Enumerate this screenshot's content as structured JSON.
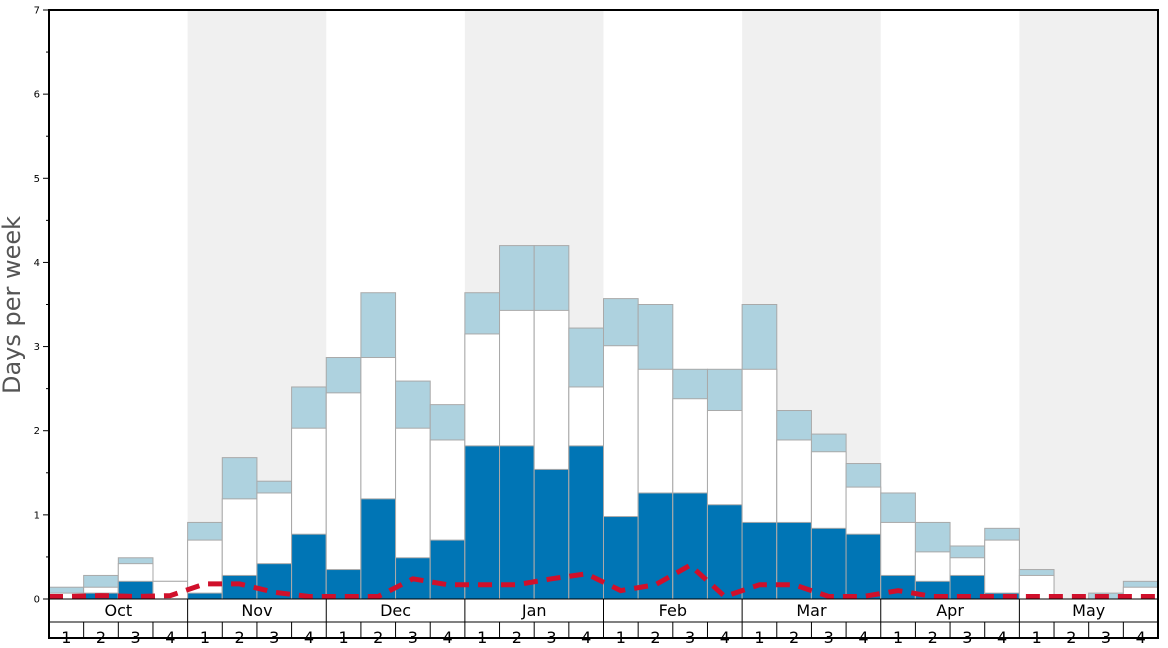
{
  "chart_data": {
    "type": "bar",
    "ylabel": "Days per week",
    "ylim": [
      0,
      7
    ],
    "yticks": [
      0,
      1,
      2,
      3,
      4,
      5,
      6,
      7
    ],
    "months": [
      "Oct",
      "Nov",
      "Dec",
      "Jan",
      "Feb",
      "Mar",
      "Apr",
      "May"
    ],
    "weeks": [
      "1",
      "2",
      "3",
      "4"
    ],
    "shaded_months": [
      "Nov",
      "Jan",
      "Mar",
      "May"
    ],
    "colors": {
      "dark": "#0075b5",
      "mid": "#ffffff",
      "light": "#aed2df",
      "line": "#d0102b",
      "shade": "#f0f0f0",
      "bar_edge": "#a9a9a9"
    },
    "series": [
      {
        "values": [
          0.0,
          0.07,
          0.21,
          0.0,
          0.07,
          0.28,
          0.42,
          0.77,
          0.35,
          1.19,
          0.49,
          0.7,
          1.82,
          1.82,
          1.54,
          1.82,
          0.98,
          1.26,
          1.26,
          1.12,
          0.91,
          0.91,
          0.84,
          0.77,
          0.28,
          0.21,
          0.28,
          0.07,
          0.0,
          0.0,
          0.0,
          0.0
        ]
      },
      {
        "values": [
          0.07,
          0.14,
          0.42,
          0.21,
          0.7,
          1.19,
          1.26,
          2.03,
          2.45,
          2.87,
          2.03,
          1.89,
          3.15,
          3.43,
          3.43,
          2.52,
          3.01,
          2.73,
          2.38,
          2.24,
          2.73,
          1.89,
          1.75,
          1.33,
          0.91,
          0.56,
          0.49,
          0.7,
          0.28,
          0.0,
          0.0,
          0.14
        ]
      },
      {
        "values": [
          0.14,
          0.28,
          0.49,
          0.21,
          0.91,
          1.68,
          1.4,
          2.52,
          2.87,
          3.64,
          2.59,
          2.31,
          3.64,
          4.2,
          4.2,
          3.22,
          3.57,
          3.5,
          2.73,
          2.73,
          3.5,
          2.24,
          1.96,
          1.61,
          1.26,
          0.91,
          0.63,
          0.84,
          0.35,
          0.0,
          0.07,
          0.21
        ]
      },
      {
        "values": [
          0.03,
          0.04,
          0.03,
          0.04,
          0.18,
          0.18,
          0.08,
          0.03,
          0.03,
          0.03,
          0.24,
          0.17,
          0.17,
          0.17,
          0.24,
          0.3,
          0.1,
          0.17,
          0.4,
          0.03,
          0.17,
          0.17,
          0.03,
          0.03,
          0.1,
          0.03,
          0.03,
          0.03,
          0.03,
          0.03,
          0.03,
          0.03
        ]
      }
    ]
  }
}
